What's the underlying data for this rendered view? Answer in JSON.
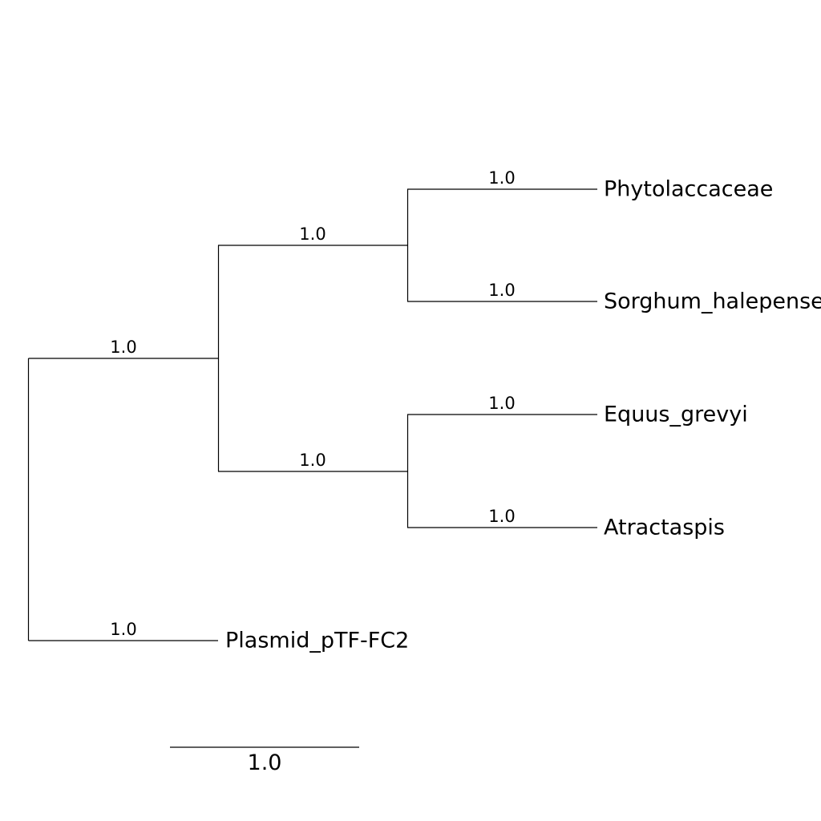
{
  "tree": {
    "type": "phylogenetic-tree",
    "leaves": [
      {
        "id": "phytolaccaceae",
        "label": "Phytolaccaceae",
        "branch_length": "1.0"
      },
      {
        "id": "sorghum",
        "label": "Sorghum_halepense",
        "branch_length": "1.0"
      },
      {
        "id": "equus",
        "label": "Equus_grevyi",
        "branch_length": "1.0"
      },
      {
        "id": "atractaspis",
        "label": "Atractaspis",
        "branch_length": "1.0"
      },
      {
        "id": "plasmid",
        "label": "Plasmid_pTF-FC2",
        "branch_length": "1.0"
      }
    ],
    "internal": {
      "clade_main": {
        "branch_length": "1.0"
      },
      "clade_upper": {
        "branch_length": "1.0"
      },
      "clade_lower": {
        "branch_length": "1.0"
      }
    },
    "scale_bar": {
      "label": "1.0"
    },
    "newick": "(((Phytolaccaceae:1.0,Sorghum_halepense:1.0):1.0,(Equus_grevyi:1.0,Atractaspis:1.0):1.0):1.0,Plasmid_pTF-FC2:1.0);"
  }
}
